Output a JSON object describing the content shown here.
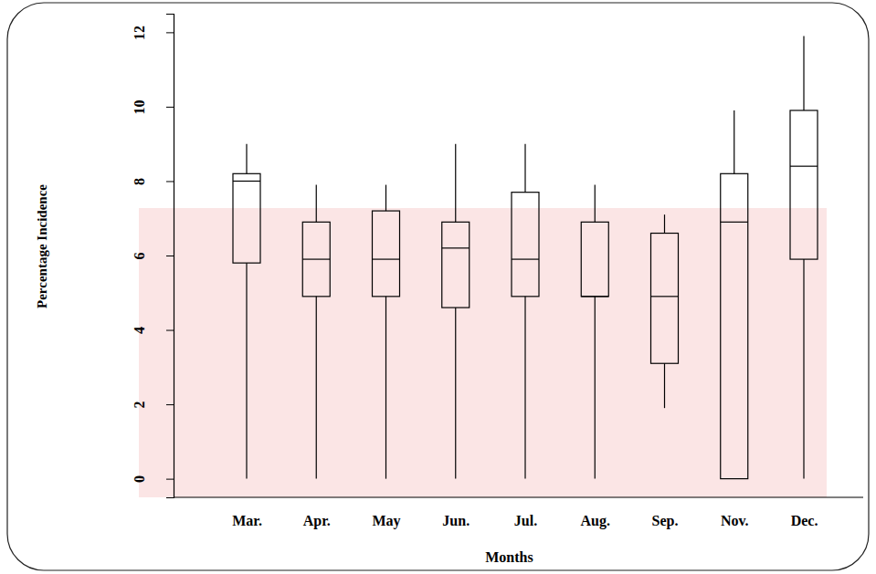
{
  "chart_data": {
    "type": "box",
    "x_label": "Months",
    "y_label": "Percentage Incidence",
    "categories": [
      "Mar.",
      "Apr.",
      "May",
      "Jun.",
      "Jul.",
      "Aug.",
      "Sep.",
      "Nov.",
      "Dec."
    ],
    "min": [
      0,
      0,
      0,
      0,
      0,
      0,
      1.9,
      0,
      0
    ],
    "q1": [
      5.8,
      4.9,
      4.9,
      4.6,
      4.9,
      4.9,
      3.1,
      0,
      5.9
    ],
    "median": [
      8.0,
      5.9,
      5.9,
      6.2,
      5.9,
      4.9,
      4.9,
      6.9,
      8.4
    ],
    "q3": [
      8.2,
      6.9,
      7.2,
      6.9,
      7.7,
      6.9,
      6.6,
      8.2,
      9.9
    ],
    "max": [
      9.0,
      7.9,
      7.9,
      9.0,
      9.0,
      7.9,
      7.1,
      9.9,
      11.9
    ],
    "color": "#000000",
    "ylim": [
      -0.5,
      12.5
    ],
    "yticks": [
      0,
      2,
      4,
      6,
      8,
      10,
      12
    ],
    "grid": false
  }
}
